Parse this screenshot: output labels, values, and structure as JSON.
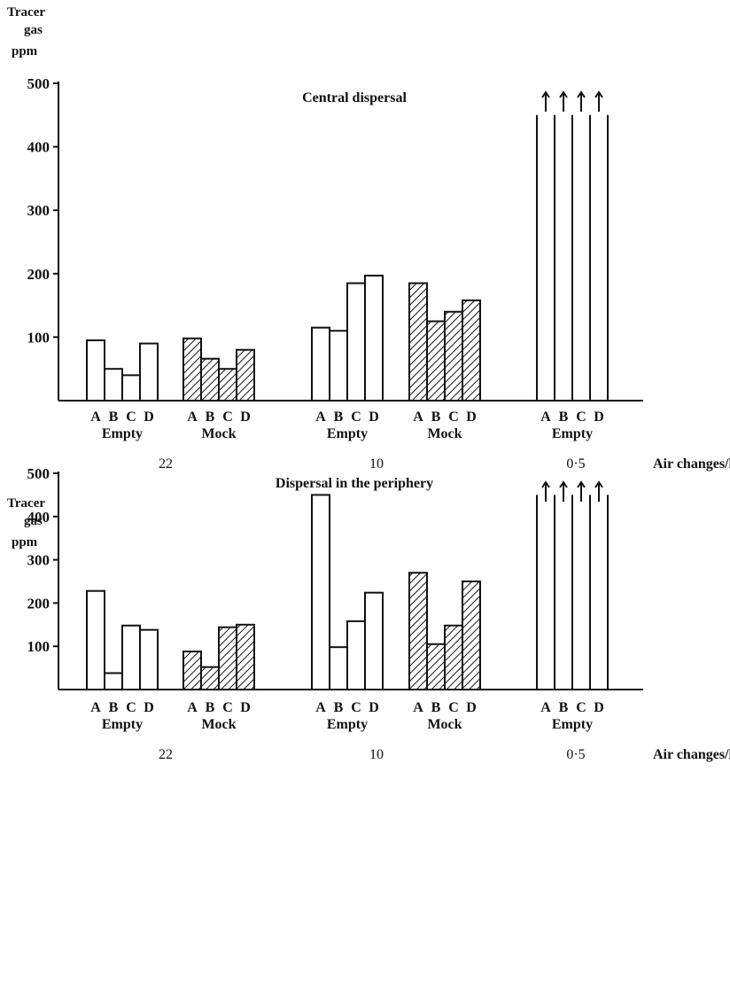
{
  "chart_data": [
    {
      "type": "bar",
      "title": "Central dispersal",
      "ylabel_lines": [
        "Tracer",
        "gas",
        "ppm"
      ],
      "ylim": [
        0,
        500
      ],
      "yticks": [
        "100",
        "200",
        "300",
        "400",
        "500"
      ],
      "xlabel": "Air changes/h",
      "air_change_labels": [
        "22",
        "10",
        "0·5"
      ],
      "legend": "none",
      "grid": false,
      "groups": [
        {
          "condition": "Empty",
          "air_changes": "22",
          "pattern": "open",
          "bars": [
            {
              "label": "A",
              "value": 95
            },
            {
              "label": "B",
              "value": 50
            },
            {
              "label": "C",
              "value": 40
            },
            {
              "label": "D",
              "value": 90
            }
          ]
        },
        {
          "condition": "Mock",
          "air_changes": "22",
          "pattern": "hatched",
          "bars": [
            {
              "label": "A",
              "value": 98
            },
            {
              "label": "B",
              "value": 66
            },
            {
              "label": "C",
              "value": 50
            },
            {
              "label": "D",
              "value": 80
            }
          ]
        },
        {
          "condition": "Empty",
          "air_changes": "10",
          "pattern": "open",
          "bars": [
            {
              "label": "A",
              "value": 115
            },
            {
              "label": "B",
              "value": 110
            },
            {
              "label": "C",
              "value": 185
            },
            {
              "label": "D",
              "value": 197
            }
          ]
        },
        {
          "condition": "Mock",
          "air_changes": "10",
          "pattern": "hatched",
          "bars": [
            {
              "label": "A",
              "value": 185
            },
            {
              "label": "B",
              "value": 125
            },
            {
              "label": "C",
              "value": 140
            },
            {
              "label": "D",
              "value": 158
            }
          ]
        },
        {
          "condition": "Empty",
          "air_changes": "0·5",
          "pattern": "open",
          "exceeds_axis": true,
          "bars": [
            {
              "label": "A",
              "value": 450
            },
            {
              "label": "B",
              "value": 450
            },
            {
              "label": "C",
              "value": 450
            },
            {
              "label": "D",
              "value": 450
            }
          ]
        }
      ]
    },
    {
      "type": "bar",
      "title": "Dispersal in the periphery",
      "ylabel_lines": [
        "Tracer",
        "gas",
        "ppm"
      ],
      "ylim": [
        0,
        500
      ],
      "yticks": [
        "100",
        "200",
        "300",
        "400",
        "500"
      ],
      "xlabel": "Air changes/h",
      "air_change_labels": [
        "22",
        "10",
        "0·5"
      ],
      "legend": "none",
      "grid": false,
      "groups": [
        {
          "condition": "Empty",
          "air_changes": "22",
          "pattern": "open",
          "bars": [
            {
              "label": "A",
              "value": 228
            },
            {
              "label": "B",
              "value": 38
            },
            {
              "label": "C",
              "value": 148
            },
            {
              "label": "D",
              "value": 138
            }
          ]
        },
        {
          "condition": "Mock",
          "air_changes": "22",
          "pattern": "hatched",
          "bars": [
            {
              "label": "A",
              "value": 88
            },
            {
              "label": "B",
              "value": 52
            },
            {
              "label": "C",
              "value": 144
            },
            {
              "label": "D",
              "value": 150
            }
          ]
        },
        {
          "condition": "Empty",
          "air_changes": "10",
          "pattern": "open",
          "bars": [
            {
              "label": "A",
              "value": 450
            },
            {
              "label": "B",
              "value": 98
            },
            {
              "label": "C",
              "value": 158
            },
            {
              "label": "D",
              "value": 224
            }
          ]
        },
        {
          "condition": "Mock",
          "air_changes": "10",
          "pattern": "hatched",
          "bars": [
            {
              "label": "A",
              "value": 270
            },
            {
              "label": "B",
              "value": 105
            },
            {
              "label": "C",
              "value": 148
            },
            {
              "label": "D",
              "value": 250
            }
          ]
        },
        {
          "condition": "Empty",
          "air_changes": "0·5",
          "pattern": "open",
          "exceeds_axis": true,
          "bars": [
            {
              "label": "A",
              "value": 450
            },
            {
              "label": "B",
              "value": 450
            },
            {
              "label": "C",
              "value": 450
            },
            {
              "label": "D",
              "value": 450
            }
          ]
        }
      ]
    }
  ]
}
